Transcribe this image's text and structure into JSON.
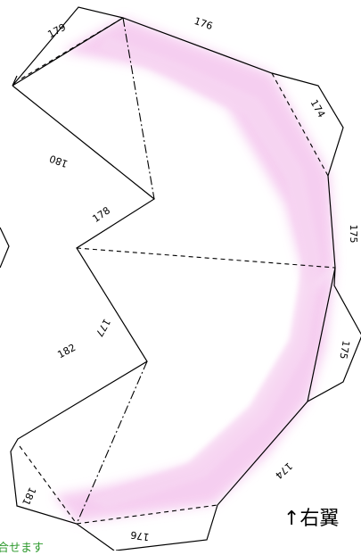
{
  "panel_labels": {
    "top_left": "179",
    "top": "176",
    "upper_right": "174",
    "left_upper": "180",
    "middle_left": "178",
    "right": "175",
    "left_middle": "177",
    "lower_right": "175",
    "lower_left": "182",
    "bottom_right": "174",
    "bottom_left": "181",
    "bottom": "176"
  },
  "caption": "↑右翼",
  "note": "合せます",
  "colors": {
    "wing_fill": "#f4c6ee",
    "caption_text": "#000000",
    "note_text": "#2e9a2e"
  }
}
